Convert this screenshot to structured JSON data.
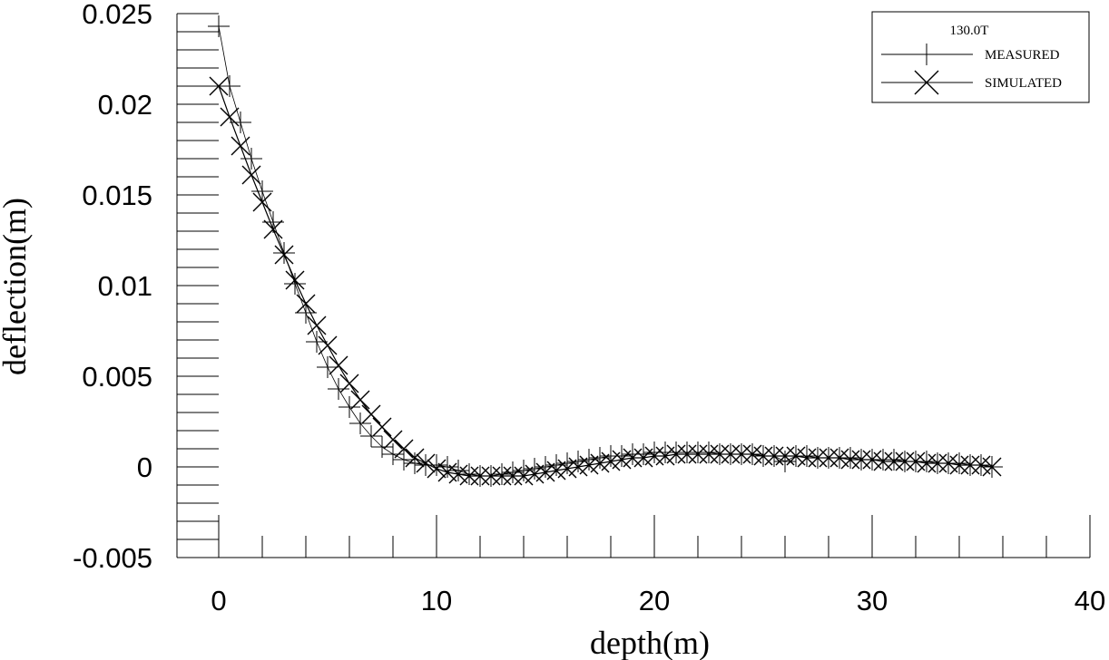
{
  "chart_data": {
    "type": "line",
    "title": "",
    "xlabel": "depth(m)",
    "ylabel": "deflection(m)",
    "xlim": [
      0,
      40
    ],
    "ylim": [
      -0.005,
      0.025
    ],
    "x_ticks": [
      0,
      10,
      20,
      30,
      40
    ],
    "x_tick_labels": [
      "0",
      "10",
      "20",
      "30",
      "40"
    ],
    "y_ticks": [
      0.025,
      0.02,
      0.015,
      0.01,
      0.005,
      0,
      -0.005
    ],
    "y_tick_labels": [
      "0.025",
      "0.02",
      "0.015",
      "0.01",
      "0.005",
      "0",
      "-0.005"
    ],
    "grid": false,
    "legend": {
      "placement": "top-right",
      "title": "130.0T",
      "entries": [
        "MEASURED",
        "SIMULATED"
      ]
    },
    "series": [
      {
        "name": "MEASURED",
        "marker": "plus",
        "x": [
          0,
          0.5,
          1,
          1.5,
          2,
          2.5,
          3,
          3.5,
          4,
          4.5,
          5,
          5.5,
          6,
          6.5,
          7,
          7.5,
          8,
          8.5,
          9,
          9.5,
          10,
          10.5,
          11,
          11.5,
          12,
          12.5,
          13,
          13.5,
          14,
          14.5,
          15,
          15.5,
          16,
          16.5,
          17,
          17.5,
          18,
          18.5,
          19,
          19.5,
          20,
          20.5,
          21,
          21.5,
          22,
          22.5,
          23,
          23.5,
          24,
          24.5,
          25,
          25.5,
          26,
          26.5,
          27,
          27.5,
          28,
          28.5,
          29,
          29.5,
          30,
          30.5,
          31,
          31.5,
          32,
          32.5,
          33,
          33.5,
          34,
          34.5,
          35,
          35.5
        ],
        "y": [
          0.0243,
          0.021,
          0.019,
          0.017,
          0.0152,
          0.0135,
          0.0118,
          0.0101,
          0.0085,
          0.0069,
          0.0055,
          0.0043,
          0.0033,
          0.0024,
          0.0017,
          0.0011,
          0.0007,
          0.0004,
          0.0002,
          0.0001,
          0.0001,
          0.0,
          -0.0002,
          -0.0004,
          -0.0005,
          -0.0005,
          -0.0004,
          -0.0003,
          -0.0002,
          -0.0001,
          0.0,
          0.0001,
          0.0002,
          0.0003,
          0.0004,
          0.0005,
          0.0006,
          0.0006,
          0.0007,
          0.0007,
          0.0008,
          0.0008,
          0.0008,
          0.0008,
          0.0008,
          0.0008,
          0.0007,
          0.0007,
          0.0007,
          0.0007,
          0.0006,
          0.0006,
          0.0003,
          0.0006,
          0.0006,
          0.0005,
          0.0005,
          0.0005,
          0.0005,
          0.0004,
          0.0004,
          0.0004,
          0.0004,
          0.0003,
          0.0003,
          0.0003,
          0.0002,
          0.0002,
          0.0002,
          0.0001,
          0.0001,
          0.0
        ]
      },
      {
        "name": "SIMULATED",
        "marker": "x",
        "x": [
          0,
          0.5,
          1,
          1.5,
          2,
          2.5,
          3,
          3.5,
          4,
          4.5,
          5,
          5.5,
          6,
          6.5,
          7,
          7.5,
          8,
          8.5,
          9,
          9.5,
          10,
          10.5,
          11,
          11.5,
          12,
          12.5,
          13,
          13.5,
          14,
          14.5,
          15,
          15.5,
          16,
          16.5,
          17,
          17.5,
          18,
          18.5,
          19,
          19.5,
          20,
          20.5,
          21,
          21.5,
          22,
          22.5,
          23,
          23.5,
          24,
          24.5,
          25,
          25.5,
          26,
          26.5,
          27,
          27.5,
          28,
          28.5,
          29,
          29.5,
          30,
          30.5,
          31,
          31.5,
          32,
          32.5,
          33,
          33.5,
          34,
          34.5,
          35,
          35.5
        ],
        "y": [
          0.021,
          0.0193,
          0.0177,
          0.0161,
          0.0146,
          0.0131,
          0.0117,
          0.0103,
          0.009,
          0.0078,
          0.0067,
          0.0056,
          0.0046,
          0.0037,
          0.0029,
          0.0022,
          0.0015,
          0.001,
          0.0005,
          0.0002,
          -0.0001,
          -0.0003,
          -0.0004,
          -0.0005,
          -0.0005,
          -0.0005,
          -0.0005,
          -0.0005,
          -0.0005,
          -0.0004,
          -0.0003,
          -0.0002,
          -0.0001,
          0.0,
          0.0001,
          0.0002,
          0.0003,
          0.0004,
          0.0005,
          0.0005,
          0.0006,
          0.0006,
          0.0007,
          0.0007,
          0.0007,
          0.0007,
          0.0007,
          0.0007,
          0.0007,
          0.0007,
          0.0006,
          0.0006,
          0.0006,
          0.0006,
          0.0005,
          0.0005,
          0.0005,
          0.0005,
          0.0004,
          0.0004,
          0.0004,
          0.0003,
          0.0003,
          0.0003,
          0.0003,
          0.0002,
          0.0002,
          0.0002,
          0.0001,
          0.0001,
          0.0001,
          0.0
        ]
      }
    ]
  }
}
